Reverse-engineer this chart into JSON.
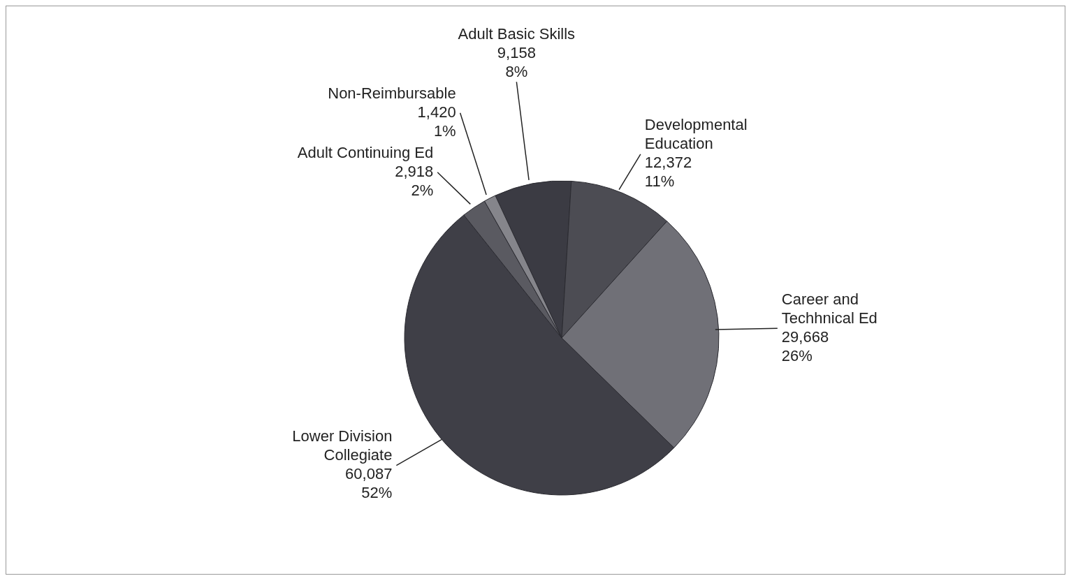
{
  "chart_data": {
    "type": "pie",
    "categories": [
      "Adult Basic Skills",
      "Developmental Education",
      "Career and Techhnical Ed",
      "Lower Division Collegiate",
      "Adult Continuing Ed",
      "Non-Reimbursable"
    ],
    "values": [
      9158,
      12372,
      29668,
      60087,
      2918,
      1420
    ],
    "value_labels": [
      "9,158\n8%",
      "12,372\n11%",
      "29,668\n26%",
      "60,087\n52%",
      "2,918\n2%",
      "1,420\n1%"
    ],
    "colors": [
      "#3b3b43",
      "#4c4c53",
      "#707077",
      "#3f3f47",
      "#5a5a61",
      "#85858b"
    ]
  }
}
